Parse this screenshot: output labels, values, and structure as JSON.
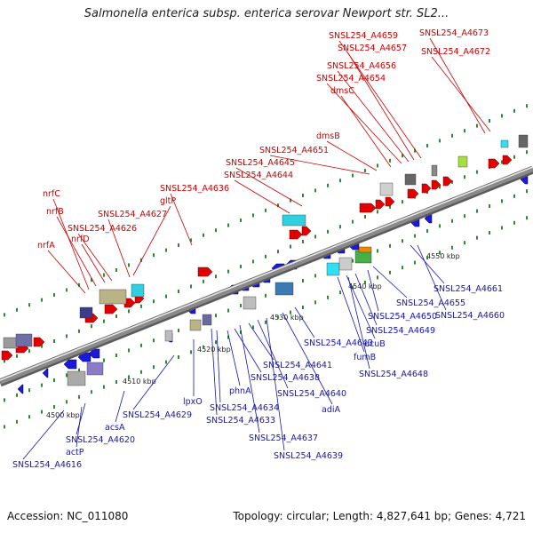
{
  "title": "Salmonella enterica subsp. enterica serovar Newport str. SL2...",
  "footer": {
    "accession": "Accession: NC_011080",
    "summary": "Topology: circular; Length: 4,827,641 bp; Genes: 4,721"
  },
  "colors": {
    "forward_label": "#cc0000",
    "reverse_label": "#1515b4",
    "backbone": "#8a8a8a"
  },
  "ticks": [
    "4500 kbp",
    "4510 kbp",
    "4520 kbp",
    "4530 kbp",
    "4540 kbp",
    "4550 kbp"
  ],
  "forward_genes": [
    "nrfA",
    "nrfC",
    "nrfB",
    "nrfD",
    "SNSL254_A4626",
    "SNSL254_A4627",
    "gltP",
    "SNSL254_A4636",
    "SNSL254_A4644",
    "SNSL254_A4645",
    "SNSL254_A4651",
    "dmsB",
    "dmsC",
    "SNSL254_A4654",
    "SNSL254_A4656",
    "SNSL254_A4657",
    "SNSL254_A4659",
    "SNSL254_A4673",
    "SNSL254_A4672"
  ],
  "reverse_genes": [
    "SNSL254_A4616",
    "actP",
    "SNSL254_A4620",
    "acsA",
    "SNSL254_A4629",
    "lpxO",
    "SNSL254_A4633",
    "SNSL254_A4634",
    "phnA",
    "SNSL254_A4638",
    "SNSL254_A4637",
    "SNSL254_A4641",
    "SNSL254_A4640",
    "SNSL254_A4639",
    "adiA",
    "SNSL254_A4643",
    "dcuB",
    "fumB",
    "SNSL254_A4649",
    "SNSL254_A4648",
    "SNSL254_A4650",
    "SNSL254_A4655",
    "SNSL254_A4661",
    "SNSL254_A4660"
  ]
}
